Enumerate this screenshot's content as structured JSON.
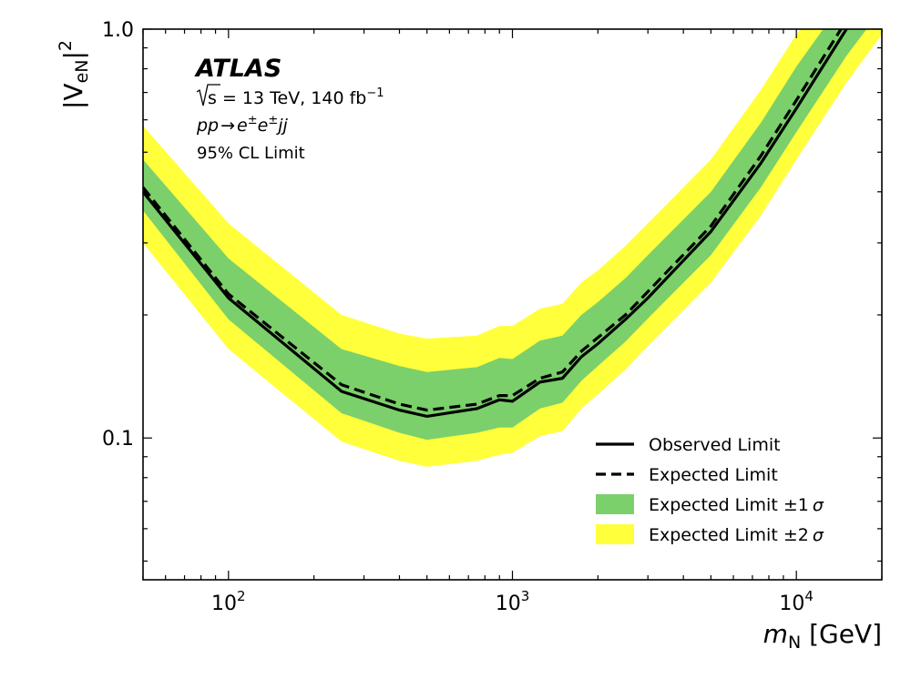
{
  "chart_data": {
    "type": "line",
    "title": "",
    "xlabel_main": "m",
    "xlabel_sub": "N",
    "xlabel_unit": " [GeV]",
    "ylabel_pre": "|V",
    "ylabel_sub": "eN",
    "ylabel_post": "|",
    "ylabel_sup": "2",
    "x_scale": "log",
    "y_scale": "log",
    "xlim": [
      50,
      20000
    ],
    "ylim": [
      0.045,
      1.0
    ],
    "x_ticks": [
      {
        "value": 100,
        "base": "10",
        "exp": "2"
      },
      {
        "value": 1000,
        "base": "10",
        "exp": "3"
      },
      {
        "value": 10000,
        "base": "10",
        "exp": "4"
      }
    ],
    "y_ticks": [
      {
        "value": 0.1,
        "label": "0.1"
      },
      {
        "value": 1.0,
        "label": "1.0"
      }
    ],
    "grid": false,
    "legend_position": "lower-right",
    "annotations": {
      "experiment": "ATLAS",
      "energy_sqrt": "s",
      "energy_text": " = 13 TeV, 140 fb",
      "energy_sup": "−1",
      "process_a": "pp",
      "process_arrow": "→",
      "process_e1": "e",
      "process_pm1": "±",
      "process_e2": "e",
      "process_pm2": "±",
      "process_jj": "jj",
      "cl": "95% CL Limit"
    },
    "colors": {
      "observed": "#000000",
      "expected": "#000000",
      "band_1sigma": "#7bd06b",
      "band_2sigma": "#ffff3c"
    },
    "legend": [
      {
        "key": "observed",
        "label": "Observed Limit",
        "sigma": ""
      },
      {
        "key": "expected",
        "label": "Expected Limit",
        "sigma": ""
      },
      {
        "key": "band_1sigma",
        "label": "Expected Limit ±1",
        "sigma": "σ"
      },
      {
        "key": "band_2sigma",
        "label": "Expected Limit ±2",
        "sigma": "σ"
      }
    ],
    "x": [
      50,
      100,
      250,
      400,
      500,
      750,
      900,
      1000,
      1250,
      1500,
      1750,
      2000,
      2500,
      3000,
      5000,
      7500,
      10000,
      15000,
      20000
    ],
    "series": [
      {
        "name": "Observed Limit",
        "key": "observed",
        "style": "solid",
        "values": [
          0.4,
          0.22,
          0.13,
          0.117,
          0.113,
          0.118,
          0.124,
          0.123,
          0.137,
          0.14,
          0.158,
          0.17,
          0.195,
          0.22,
          0.32,
          0.47,
          0.64,
          1.0,
          null
        ]
      },
      {
        "name": "Expected Limit",
        "key": "expected",
        "style": "dashed",
        "values": [
          0.41,
          0.225,
          0.135,
          0.121,
          0.117,
          0.121,
          0.127,
          0.127,
          0.14,
          0.145,
          0.163,
          0.176,
          0.2,
          0.228,
          0.33,
          0.49,
          0.67,
          1.05,
          null
        ]
      },
      {
        "name": "Expected Limit ±1σ",
        "key": "band_1sigma",
        "style": "band",
        "low": [
          0.36,
          0.195,
          0.115,
          0.103,
          0.099,
          0.103,
          0.106,
          0.106,
          0.118,
          0.122,
          0.138,
          0.15,
          0.172,
          0.196,
          0.28,
          0.41,
          0.56,
          0.86,
          1.12
        ],
        "high": [
          0.48,
          0.275,
          0.165,
          0.15,
          0.145,
          0.149,
          0.157,
          0.156,
          0.173,
          0.178,
          0.2,
          0.215,
          0.246,
          0.28,
          0.4,
          0.59,
          0.81,
          1.2,
          1.5
        ]
      },
      {
        "name": "Expected Limit ±2σ",
        "key": "band_2sigma",
        "style": "band",
        "low": [
          0.3,
          0.165,
          0.098,
          0.088,
          0.085,
          0.088,
          0.091,
          0.092,
          0.101,
          0.104,
          0.118,
          0.128,
          0.147,
          0.168,
          0.24,
          0.35,
          0.48,
          0.74,
          0.97
        ],
        "high": [
          0.58,
          0.335,
          0.2,
          0.18,
          0.175,
          0.178,
          0.188,
          0.188,
          0.207,
          0.213,
          0.24,
          0.257,
          0.295,
          0.335,
          0.48,
          0.71,
          0.97,
          1.45,
          1.8
        ]
      }
    ]
  }
}
